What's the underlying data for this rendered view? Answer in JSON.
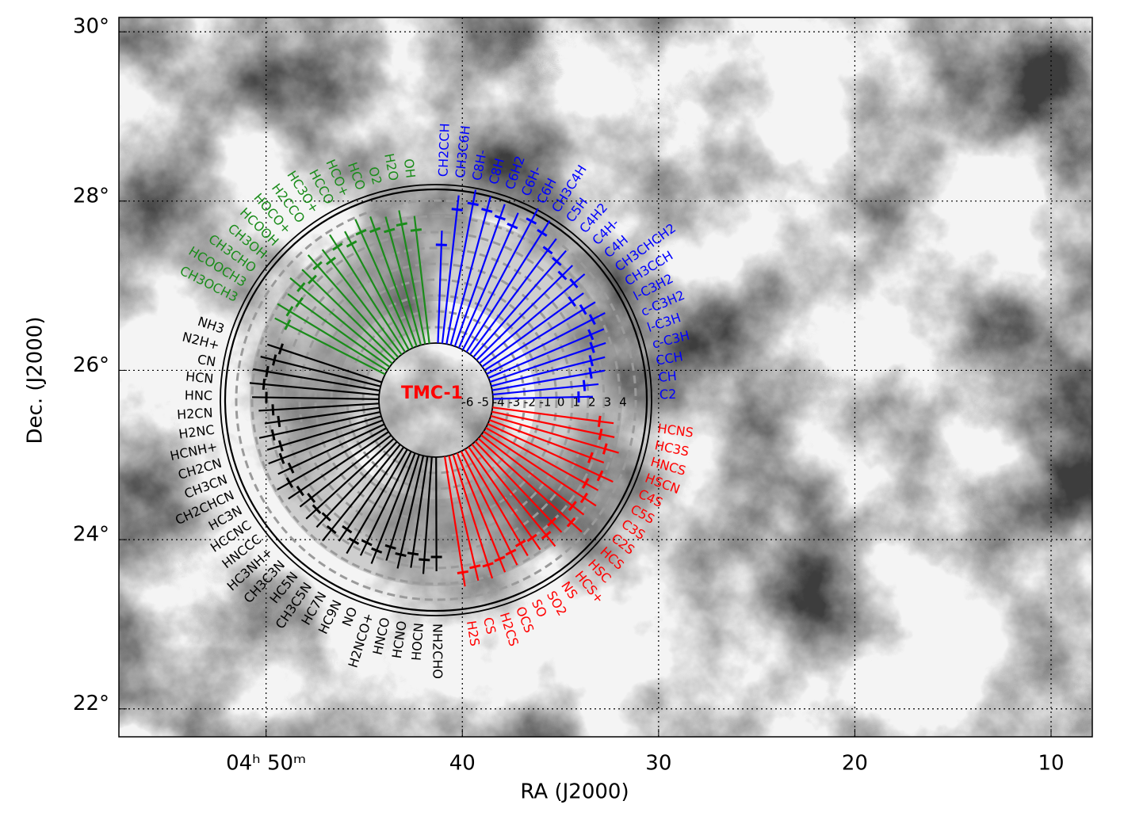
{
  "chart_data": {
    "type": "radial",
    "xlabel": "RA (J2000)",
    "ylabel": "Dec. (J2000)",
    "xlim": [
      57.5,
      7.9
    ],
    "xticks": [
      {
        "value": 50,
        "label": "04ʰ 50ᵐ"
      },
      40,
      30,
      20,
      10
    ],
    "ylim": [
      21.67,
      30.17
    ],
    "yticks": [
      {
        "value": 22,
        "label": "22°"
      },
      {
        "value": 24,
        "label": "24°"
      },
      {
        "value": 26,
        "label": "26°"
      },
      {
        "value": 28,
        "label": "28°"
      },
      {
        "value": 30,
        "label": "30°"
      }
    ],
    "grid": true,
    "center_label": "TMC-1",
    "rlim": [
      -6,
      4
    ],
    "rticks": [
      -6,
      -5,
      -4,
      -3,
      -2,
      -1,
      0,
      1,
      2,
      3,
      4
    ],
    "series": [
      {
        "color": "#0000ff",
        "labels": [
          "CH2CCH",
          "CH3C6H",
          "C8H-",
          "C8H",
          "C6H2",
          "C6H-",
          "C6H",
          "CH3C4H",
          "C5H",
          "C4H2",
          "C4H-",
          "C4H",
          "CH3CHCH2",
          "CH3CCH",
          "l-C3H2",
          "c-C3H2",
          "l-C3H",
          "c-C3H",
          "CCH",
          "CH",
          "C2"
        ],
        "values": [
          0.2,
          2.5,
          3.0,
          2.8,
          2.6,
          2.4,
          3.2,
          2.9,
          2.2,
          2.0,
          1.6,
          1.8,
          1.0,
          1.3,
          1.5,
          1.0,
          0.8,
          0.5,
          0.3,
          -0.2,
          -0.6
        ]
      },
      {
        "color": "#ff0000",
        "labels": [
          "HCNS",
          "HC3S",
          "HNCS",
          "HSCN",
          "C4S",
          "C5S",
          "C3S",
          "C2S",
          "HCS",
          "HSC",
          "HCS+",
          "NS",
          "SO2",
          "SO",
          "OCS",
          "H2CS",
          "CS",
          "H2S"
        ],
        "values": [
          0.8,
          1.0,
          1.5,
          0.8,
          1.8,
          1.2,
          1.6,
          1.3,
          1.9,
          1.0,
          1.4,
          1.0,
          0.9,
          1.1,
          1.2,
          1.3,
          1.2,
          1.4
        ]
      },
      {
        "color": "#000000",
        "labels": [
          "NH2CHO",
          "HOCN",
          "HCNO",
          "HNCO",
          "H2NCO+",
          "NO",
          "HC9N",
          "HC7N",
          "CH3C5N",
          "HC5N",
          "CH3C3N",
          "HC3NH+",
          "HNCCC",
          "HCCNC",
          "HC3N",
          "CH2CHCN",
          "CH3CN",
          "CH2CN",
          "HCNH+",
          "H2NC",
          "H2CN",
          "HNC",
          "HCN",
          "CN",
          "N2H+",
          "NH3"
        ],
        "values": [
          0.3,
          0.5,
          0.2,
          0.4,
          0.1,
          0.6,
          0.4,
          0.7,
          0.3,
          0.9,
          0.5,
          0.6,
          0.4,
          0.7,
          1.0,
          0.5,
          0.8,
          0.6,
          0.9,
          0.4,
          0.7,
          1.1,
          1.3,
          1.2,
          0.9,
          0.7
        ]
      },
      {
        "color": "#1a8c1a",
        "labels": [
          "CH3OCH3",
          "HCOOCH3",
          "CH3CHO",
          "CH3OH",
          "HCOOH",
          "HOCO+",
          "H2CCO",
          "HC3O+",
          "HCCO",
          "HCO+",
          "HCO",
          "O2",
          "H2O",
          "OH"
        ],
        "values": [
          0.9,
          1.2,
          1.0,
          1.5,
          1.3,
          1.7,
          1.4,
          1.9,
          1.6,
          2.0,
          1.8,
          1.5,
          1.7,
          1.2
        ]
      }
    ]
  }
}
